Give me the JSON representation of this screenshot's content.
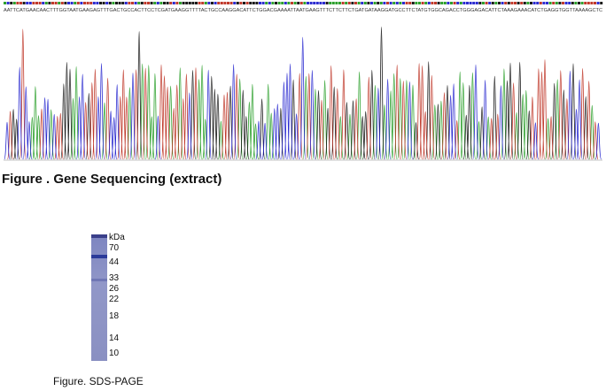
{
  "sequence": "AATTCATGAACAACTTTGGTAATGAAGAGTTTGACTGCCACTTCCTCGATGAAGGTTTTACTGCCAAGGACATTCTGGACGAAAATTAATGAAGTTTCTTCTTCTGATGATAAGGATGCCTTCTATGTGGCAGACCTGGGAGACATTCTAAAGAAACATCTGAGGTGGTTAAAAGCTC",
  "figure1": {
    "caption": "Figure . Gene Sequencing (extract)"
  },
  "figure2": {
    "unit": "kDa",
    "markers": [
      "70",
      "44",
      "33",
      "26",
      "22",
      "18",
      "14",
      "10"
    ],
    "caption": "Figure. SDS-PAGE"
  }
}
